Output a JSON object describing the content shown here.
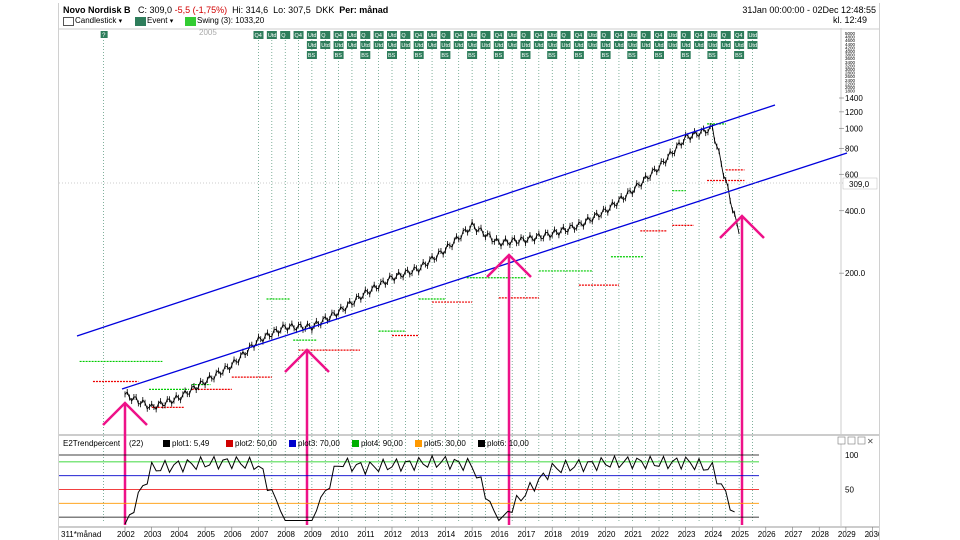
{
  "instrument": {
    "name": "Novo Nordisk B",
    "close": "C: 309,0",
    "change": "-5,5 (-1,75%)",
    "high": "Hi: 314,6",
    "low": "Lo: 307,5",
    "currency": "DKK",
    "period": "Per: månad"
  },
  "date_range": "31Jan 00:00:00 - 02Dec 12:48:55",
  "clock": "kl. 12:49",
  "legend": {
    "candlestick": "Candlestick",
    "event": "Event",
    "swing": "Swing (3): 1033,20"
  },
  "price_axis": {
    "ticks": [
      "1400",
      "1200",
      "1000",
      "800",
      "600",
      "400.0",
      "200.0"
    ],
    "last_price": "309,0",
    "top_stack": [
      "5000",
      "4800",
      "4600",
      "4400",
      "4200",
      "4000",
      "3800",
      "3600",
      "3400",
      "3200",
      "3000",
      "2800",
      "2600",
      "2400",
      "2200",
      "2000",
      "1800"
    ]
  },
  "event_labels": {
    "q4": "Q4",
    "utd": "Utd",
    "bs": "BS",
    "unknown": "?",
    "q": "Q",
    "faint_year": "2005"
  },
  "indicator": {
    "title": "E2Trendpercent",
    "period": "(22)",
    "plots": [
      {
        "label": "plot1: 5,49",
        "color": "#000000"
      },
      {
        "label": "plot2: 50,00",
        "color": "#d00000"
      },
      {
        "label": "plot3: 70,00",
        "color": "#0000cc"
      },
      {
        "label": "plot4: 90,00",
        "color": "#00b000"
      },
      {
        "label": "plot5: 30,00",
        "color": "#ff9900"
      },
      {
        "label": "plot6: 10,00",
        "color": "#000000"
      }
    ],
    "axis_ticks": [
      "100",
      "50"
    ]
  },
  "time_axis": {
    "interval_label": "311*månad",
    "years": [
      "2002",
      "2003",
      "2004",
      "2005",
      "2006",
      "2007",
      "2008",
      "2009",
      "2010",
      "2011",
      "2012",
      "2013",
      "2014",
      "2015",
      "2016",
      "2017",
      "2018",
      "2019",
      "2020",
      "2021",
      "2022",
      "2023",
      "2024",
      "2025",
      "2026",
      "2027",
      "2028",
      "2029",
      "2030"
    ]
  },
  "colors": {
    "channel": "#0000dd",
    "arrow": "#ee1188",
    "support": "#ee0000",
    "resistance": "#00cc00",
    "event_box": "#2e7d5b",
    "grid_dotted": "#2e7d5b"
  },
  "chart_data": {
    "type": "line",
    "series": [
      {
        "values_approx_monthly_close_DKK": [
          {
            "year": 2002,
            "value": 52
          },
          {
            "year": 2003,
            "value": 45
          },
          {
            "year": 2004,
            "value": 50
          },
          {
            "year": 2005,
            "value": 60
          },
          {
            "year": 2006,
            "value": 72
          },
          {
            "year": 2007,
            "value": 95
          },
          {
            "year": 2008,
            "value": 110
          },
          {
            "year": 2009,
            "value": 110
          },
          {
            "year": 2010,
            "value": 130
          },
          {
            "year": 2011,
            "value": 160
          },
          {
            "year": 2012,
            "value": 190
          },
          {
            "year": 2013,
            "value": 210
          },
          {
            "year": 2014,
            "value": 260
          },
          {
            "year": 2015,
            "value": 340
          },
          {
            "year": 2016,
            "value": 280
          },
          {
            "year": 2017,
            "value": 290
          },
          {
            "year": 2018,
            "value": 310
          },
          {
            "year": 2019,
            "value": 340
          },
          {
            "year": 2020,
            "value": 400
          },
          {
            "year": 2021,
            "value": 500
          },
          {
            "year": 2022,
            "value": 650
          },
          {
            "year": 2023,
            "value": 900
          },
          {
            "year": 2024,
            "value": 1000
          },
          {
            "year": 2025,
            "value": 309
          }
        ]
      }
    ],
    "indicator_values": [
      {
        "year": 2002,
        "value": 0
      },
      {
        "year": 2003,
        "value": 80
      },
      {
        "year": 2004,
        "value": 85
      },
      {
        "year": 2005,
        "value": 88
      },
      {
        "year": 2006,
        "value": 90
      },
      {
        "year": 2007,
        "value": 85
      },
      {
        "year": 2008,
        "value": 5
      },
      {
        "year": 2009,
        "value": 5
      },
      {
        "year": 2010,
        "value": 88
      },
      {
        "year": 2011,
        "value": 82
      },
      {
        "year": 2012,
        "value": 85
      },
      {
        "year": 2013,
        "value": 88
      },
      {
        "year": 2014,
        "value": 90
      },
      {
        "year": 2015,
        "value": 85
      },
      {
        "year": 2016,
        "value": 5
      },
      {
        "year": 2017,
        "value": 45
      },
      {
        "year": 2018,
        "value": 80
      },
      {
        "year": 2019,
        "value": 85
      },
      {
        "year": 2020,
        "value": 88
      },
      {
        "year": 2021,
        "value": 90
      },
      {
        "year": 2022,
        "value": 88
      },
      {
        "year": 2023,
        "value": 90
      },
      {
        "year": 2024,
        "value": 80
      },
      {
        "year": 2025,
        "value": 5
      }
    ],
    "y_scale": "log",
    "ylim": [
      40,
      1400
    ],
    "indicator_ylim": [
      0,
      100
    ],
    "arrows_at_years": [
      2002,
      2009,
      2016,
      2025
    ]
  }
}
